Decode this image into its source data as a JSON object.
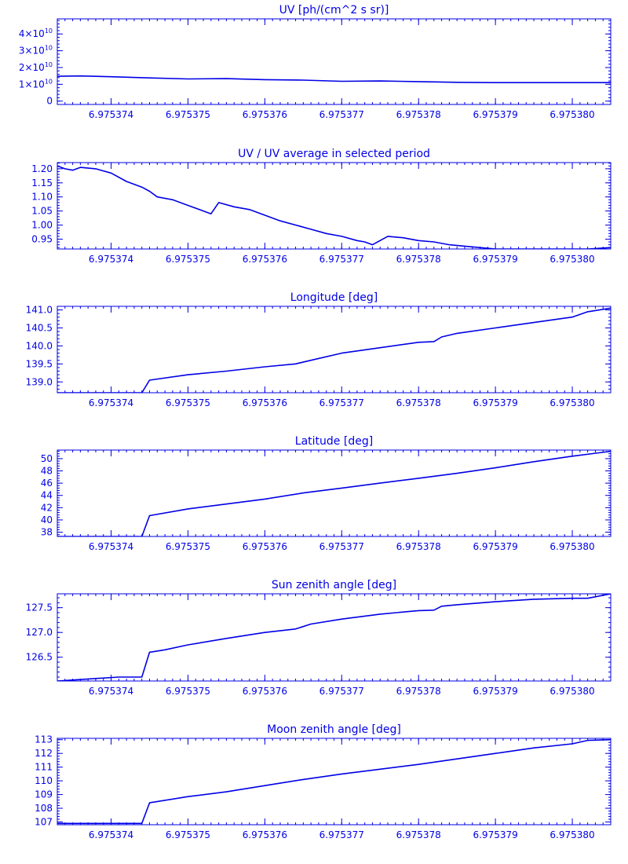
{
  "colors": {
    "ink": "#0000e6",
    "background": "#ffffff"
  },
  "chart_data": [
    {
      "type": "line",
      "title": "UV [ph/(cm^2 s sr)]",
      "xlim": [
        6.9753733,
        6.9753805
      ],
      "ylim": [
        -2000000000.0,
        49000000000.0
      ],
      "x_ticks": [
        6.975374,
        6.975375,
        6.975376,
        6.975377,
        6.975378,
        6.975379,
        6.97538
      ],
      "x_tick_labels": [
        "6.975374",
        "6.975375",
        "6.975376",
        "6.975377",
        "6.975378",
        "6.975379",
        "6.975380"
      ],
      "y_ticks": [
        0,
        10000000000.0,
        20000000000.0,
        30000000000.0,
        40000000000.0
      ],
      "y_tick_labels": [
        {
          "base": "0",
          "exp": ""
        },
        {
          "base": "1×10",
          "exp": "10"
        },
        {
          "base": "2×10",
          "exp": "10"
        },
        {
          "base": "3×10",
          "exp": "10"
        },
        {
          "base": "4×10",
          "exp": "10"
        }
      ],
      "x": [
        6.9753733,
        6.9753736,
        6.975374,
        6.9753745,
        6.975375,
        6.9753755,
        6.975376,
        6.9753765,
        6.975377,
        6.9753775,
        6.975378,
        6.9753785,
        6.975379,
        6.9753795,
        6.97538,
        6.9753805
      ],
      "y": [
        14800000000.0,
        15000000000.0,
        14500000000.0,
        13800000000.0,
        13200000000.0,
        13400000000.0,
        12800000000.0,
        12500000000.0,
        11800000000.0,
        12000000000.0,
        11600000000.0,
        11200000000.0,
        11000000000.0,
        11000000000.0,
        11000000000.0,
        11000000000.0
      ]
    },
    {
      "type": "line",
      "title": "UV / UV average in selected period",
      "xlim": [
        6.9753733,
        6.9753805
      ],
      "ylim": [
        0.915,
        1.222
      ],
      "x_ticks": [
        6.975374,
        6.975375,
        6.975376,
        6.975377,
        6.975378,
        6.975379,
        6.97538
      ],
      "x_tick_labels": [
        "6.975374",
        "6.975375",
        "6.975376",
        "6.975377",
        "6.975378",
        "6.975379",
        "6.975380"
      ],
      "y_ticks": [
        0.95,
        1.0,
        1.05,
        1.1,
        1.15,
        1.2
      ],
      "y_tick_labels": [
        {
          "base": "0.95",
          "exp": ""
        },
        {
          "base": "1.00",
          "exp": ""
        },
        {
          "base": "1.05",
          "exp": ""
        },
        {
          "base": "1.10",
          "exp": ""
        },
        {
          "base": "1.15",
          "exp": ""
        },
        {
          "base": "1.20",
          "exp": ""
        }
      ],
      "x": [
        6.9753733,
        6.9753734,
        6.9753735,
        6.9753736,
        6.9753738,
        6.975374,
        6.9753742,
        6.9753744,
        6.9753745,
        6.9753746,
        6.9753748,
        6.975375,
        6.9753752,
        6.9753753,
        6.9753754,
        6.9753756,
        6.9753758,
        6.975376,
        6.9753762,
        6.9753764,
        6.9753766,
        6.9753768,
        6.975377,
        6.9753772,
        6.9753773,
        6.9753774,
        6.9753776,
        6.9753778,
        6.975378,
        6.9753782,
        6.9753784,
        6.9753786,
        6.9753788,
        6.975379,
        6.9753792,
        6.9753794,
        6.9753796,
        6.9753798,
        6.97538,
        6.9753802,
        6.9753805
      ],
      "y": [
        1.21,
        1.2,
        1.195,
        1.205,
        1.2,
        1.185,
        1.155,
        1.135,
        1.12,
        1.1,
        1.09,
        1.07,
        1.05,
        1.04,
        1.08,
        1.065,
        1.055,
        1.035,
        1.015,
        1.0,
        0.985,
        0.97,
        0.96,
        0.945,
        0.94,
        0.93,
        0.96,
        0.955,
        0.945,
        0.94,
        0.93,
        0.925,
        0.92,
        0.915,
        0.915,
        0.915,
        0.915,
        0.915,
        0.915,
        0.915,
        0.92
      ]
    },
    {
      "type": "line",
      "title": "Longitude [deg]",
      "xlim": [
        6.9753733,
        6.9753805
      ],
      "ylim": [
        138.7,
        141.1
      ],
      "x_ticks": [
        6.975374,
        6.975375,
        6.975376,
        6.975377,
        6.975378,
        6.975379,
        6.97538
      ],
      "x_tick_labels": [
        "6.975374",
        "6.975375",
        "6.975376",
        "6.975377",
        "6.975378",
        "6.975379",
        "6.975380"
      ],
      "y_ticks": [
        139.0,
        139.5,
        140.0,
        140.5,
        141.0
      ],
      "y_tick_labels": [
        {
          "base": "139.0",
          "exp": ""
        },
        {
          "base": "139.5",
          "exp": ""
        },
        {
          "base": "140.0",
          "exp": ""
        },
        {
          "base": "140.5",
          "exp": ""
        },
        {
          "base": "141.0",
          "exp": ""
        }
      ],
      "x": [
        6.9753733,
        6.9753741,
        6.9753744,
        6.9753745,
        6.975375,
        6.9753755,
        6.975376,
        6.9753764,
        6.9753766,
        6.975377,
        6.9753775,
        6.975378,
        6.9753782,
        6.9753783,
        6.9753785,
        6.975379,
        6.9753795,
        6.97538,
        6.9753802,
        6.9753805
      ],
      "y": [
        138.7,
        138.7,
        138.7,
        139.05,
        139.2,
        139.3,
        139.42,
        139.5,
        139.6,
        139.8,
        139.95,
        140.1,
        140.12,
        140.25,
        140.35,
        140.5,
        140.65,
        140.8,
        140.95,
        141.05
      ]
    },
    {
      "type": "line",
      "title": "Latitude [deg]",
      "xlim": [
        6.9753733,
        6.9753805
      ],
      "ylim": [
        37.3,
        51.4
      ],
      "x_ticks": [
        6.975374,
        6.975375,
        6.975376,
        6.975377,
        6.975378,
        6.975379,
        6.97538
      ],
      "x_tick_labels": [
        "6.975374",
        "6.975375",
        "6.975376",
        "6.975377",
        "6.975378",
        "6.975379",
        "6.975380"
      ],
      "y_ticks": [
        38,
        40,
        42,
        44,
        46,
        48,
        50
      ],
      "y_tick_labels": [
        {
          "base": "38",
          "exp": ""
        },
        {
          "base": "40",
          "exp": ""
        },
        {
          "base": "42",
          "exp": ""
        },
        {
          "base": "44",
          "exp": ""
        },
        {
          "base": "46",
          "exp": ""
        },
        {
          "base": "48",
          "exp": ""
        },
        {
          "base": "50",
          "exp": ""
        }
      ],
      "x": [
        6.9753733,
        6.9753741,
        6.9753744,
        6.9753745,
        6.975375,
        6.9753755,
        6.975376,
        6.9753765,
        6.975377,
        6.9753775,
        6.975378,
        6.9753785,
        6.975379,
        6.9753795,
        6.97538,
        6.9753805
      ],
      "y": [
        37.3,
        37.3,
        37.3,
        40.7,
        41.8,
        42.6,
        43.4,
        44.4,
        45.2,
        46.0,
        46.8,
        47.6,
        48.5,
        49.5,
        50.4,
        51.2
      ]
    },
    {
      "type": "line",
      "title": "Sun zenith angle [deg]",
      "xlim": [
        6.9753733,
        6.9753805
      ],
      "ylim": [
        126.02,
        127.78
      ],
      "x_ticks": [
        6.975374,
        6.975375,
        6.975376,
        6.975377,
        6.975378,
        6.975379,
        6.97538
      ],
      "x_tick_labels": [
        "6.975374",
        "6.975375",
        "6.975376",
        "6.975377",
        "6.975378",
        "6.975379",
        "6.975380"
      ],
      "y_ticks": [
        126.5,
        127.0,
        127.5
      ],
      "y_tick_labels": [
        {
          "base": "126.5",
          "exp": ""
        },
        {
          "base": "127.0",
          "exp": ""
        },
        {
          "base": "127.5",
          "exp": ""
        }
      ],
      "x": [
        6.9753733,
        6.9753741,
        6.9753744,
        6.9753745,
        6.9753747,
        6.975375,
        6.9753755,
        6.975376,
        6.9753764,
        6.9753766,
        6.975377,
        6.9753775,
        6.975378,
        6.9753782,
        6.9753783,
        6.9753785,
        6.975379,
        6.9753795,
        6.97538,
        6.9753802,
        6.9753805
      ],
      "y": [
        126.02,
        126.1,
        126.1,
        126.6,
        126.65,
        126.75,
        126.88,
        127.0,
        127.07,
        127.17,
        127.27,
        127.37,
        127.44,
        127.45,
        127.53,
        127.56,
        127.62,
        127.67,
        127.69,
        127.69,
        127.78
      ]
    },
    {
      "type": "line",
      "title": "Moon zenith angle [deg]",
      "xlim": [
        6.9753733,
        6.9753805
      ],
      "ylim": [
        106.8,
        113.1
      ],
      "x_ticks": [
        6.975374,
        6.975375,
        6.975376,
        6.975377,
        6.975378,
        6.975379,
        6.97538
      ],
      "x_tick_labels": [
        "6.975374",
        "6.975375",
        "6.975376",
        "6.975377",
        "6.975378",
        "6.975379",
        "6.975380"
      ],
      "y_ticks": [
        107,
        108,
        109,
        110,
        111,
        112,
        113
      ],
      "y_tick_labels": [
        {
          "base": "107",
          "exp": ""
        },
        {
          "base": "108",
          "exp": ""
        },
        {
          "base": "109",
          "exp": ""
        },
        {
          "base": "110",
          "exp": ""
        },
        {
          "base": "111",
          "exp": ""
        },
        {
          "base": "112",
          "exp": ""
        },
        {
          "base": "113",
          "exp": ""
        }
      ],
      "x": [
        6.9753733,
        6.9753741,
        6.9753744,
        6.9753745,
        6.975375,
        6.9753755,
        6.975376,
        6.9753765,
        6.975377,
        6.9753775,
        6.975378,
        6.9753785,
        6.975379,
        6.9753795,
        6.97538,
        6.9753802,
        6.9753805
      ],
      "y": [
        106.9,
        106.9,
        106.9,
        108.4,
        108.85,
        109.2,
        109.65,
        110.1,
        110.5,
        110.85,
        111.2,
        111.6,
        112.0,
        112.4,
        112.7,
        112.95,
        113.0
      ]
    }
  ]
}
